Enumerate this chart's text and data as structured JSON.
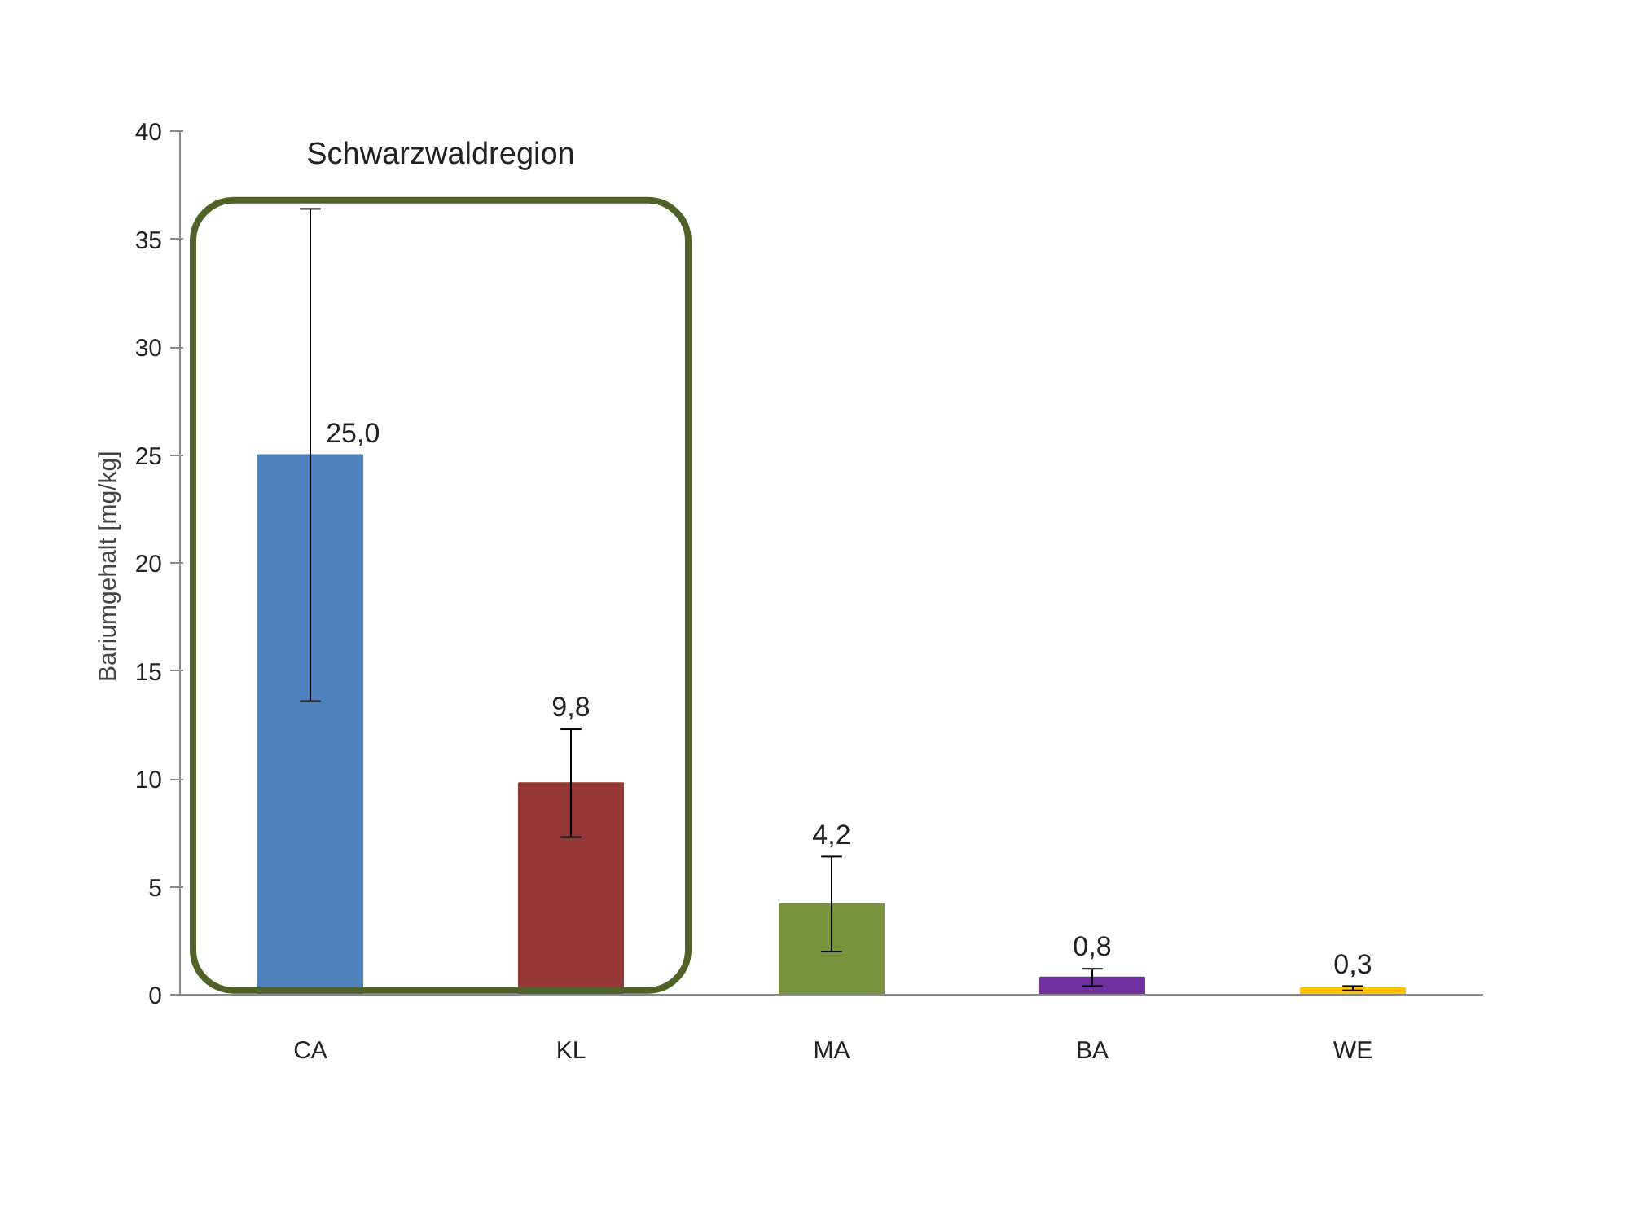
{
  "chart_data": {
    "type": "bar",
    "ylabel": "Bariumgehalt  [mg/kg]",
    "categories": [
      "CA",
      "KL",
      "MA",
      "BA",
      "WE"
    ],
    "values": [
      25.0,
      9.8,
      4.2,
      0.8,
      0.3
    ],
    "colors": [
      "#4f81bd",
      "#953735",
      "#77933c",
      "#7030a0",
      "#ffc000"
    ],
    "errors": [
      11.4,
      2.5,
      2.2,
      0.4,
      0.1
    ],
    "value_labels": [
      "25,0",
      "9,8",
      "4,2",
      "0,8",
      "0,3"
    ],
    "ylim": [
      0,
      40
    ],
    "yticks": [
      0,
      5,
      10,
      15,
      20,
      25,
      30,
      35,
      40
    ],
    "grid": false,
    "annotations": [
      "Schwarzwaldregion"
    ]
  }
}
